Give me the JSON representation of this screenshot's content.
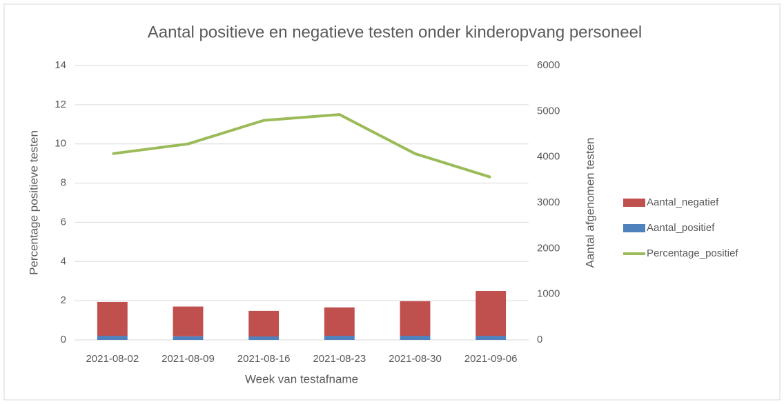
{
  "chart_data": {
    "type": "bar-line",
    "title": "Aantal positieve en negatieve testen onder kinderopvang personeel",
    "x_label": "Week van testafname",
    "y_label": "Percentage positieve testen",
    "y2_label": "Aantal afgenomen testen",
    "categories": [
      "2021-08-02",
      "2021-08-09",
      "2021-08-16",
      "2021-08-23",
      "2021-08-30",
      "2021-09-06"
    ],
    "series": [
      {
        "name": "Aantal_negatief",
        "color": "#c0504d",
        "type": "bar",
        "axis": "y2",
        "values": [
          740,
          650,
          560,
          620,
          755,
          980
        ]
      },
      {
        "name": "Aantal_positief",
        "color": "#4f81bd",
        "type": "bar",
        "axis": "y2",
        "values": [
          90,
          80,
          75,
          90,
          90,
          90
        ]
      },
      {
        "name": "Percentage_positief",
        "color": "#9bbb59",
        "type": "line",
        "axis": "y",
        "values": [
          9.5,
          10.0,
          11.2,
          11.5,
          9.5,
          8.3
        ]
      }
    ],
    "ylim": [
      0,
      14
    ],
    "yticks": [
      0,
      2,
      4,
      6,
      8,
      10,
      12,
      14
    ],
    "y2lim": [
      0,
      6000
    ],
    "y2ticks": [
      0,
      1000,
      2000,
      3000,
      4000,
      5000,
      6000
    ],
    "grid": true,
    "legend": "right"
  }
}
